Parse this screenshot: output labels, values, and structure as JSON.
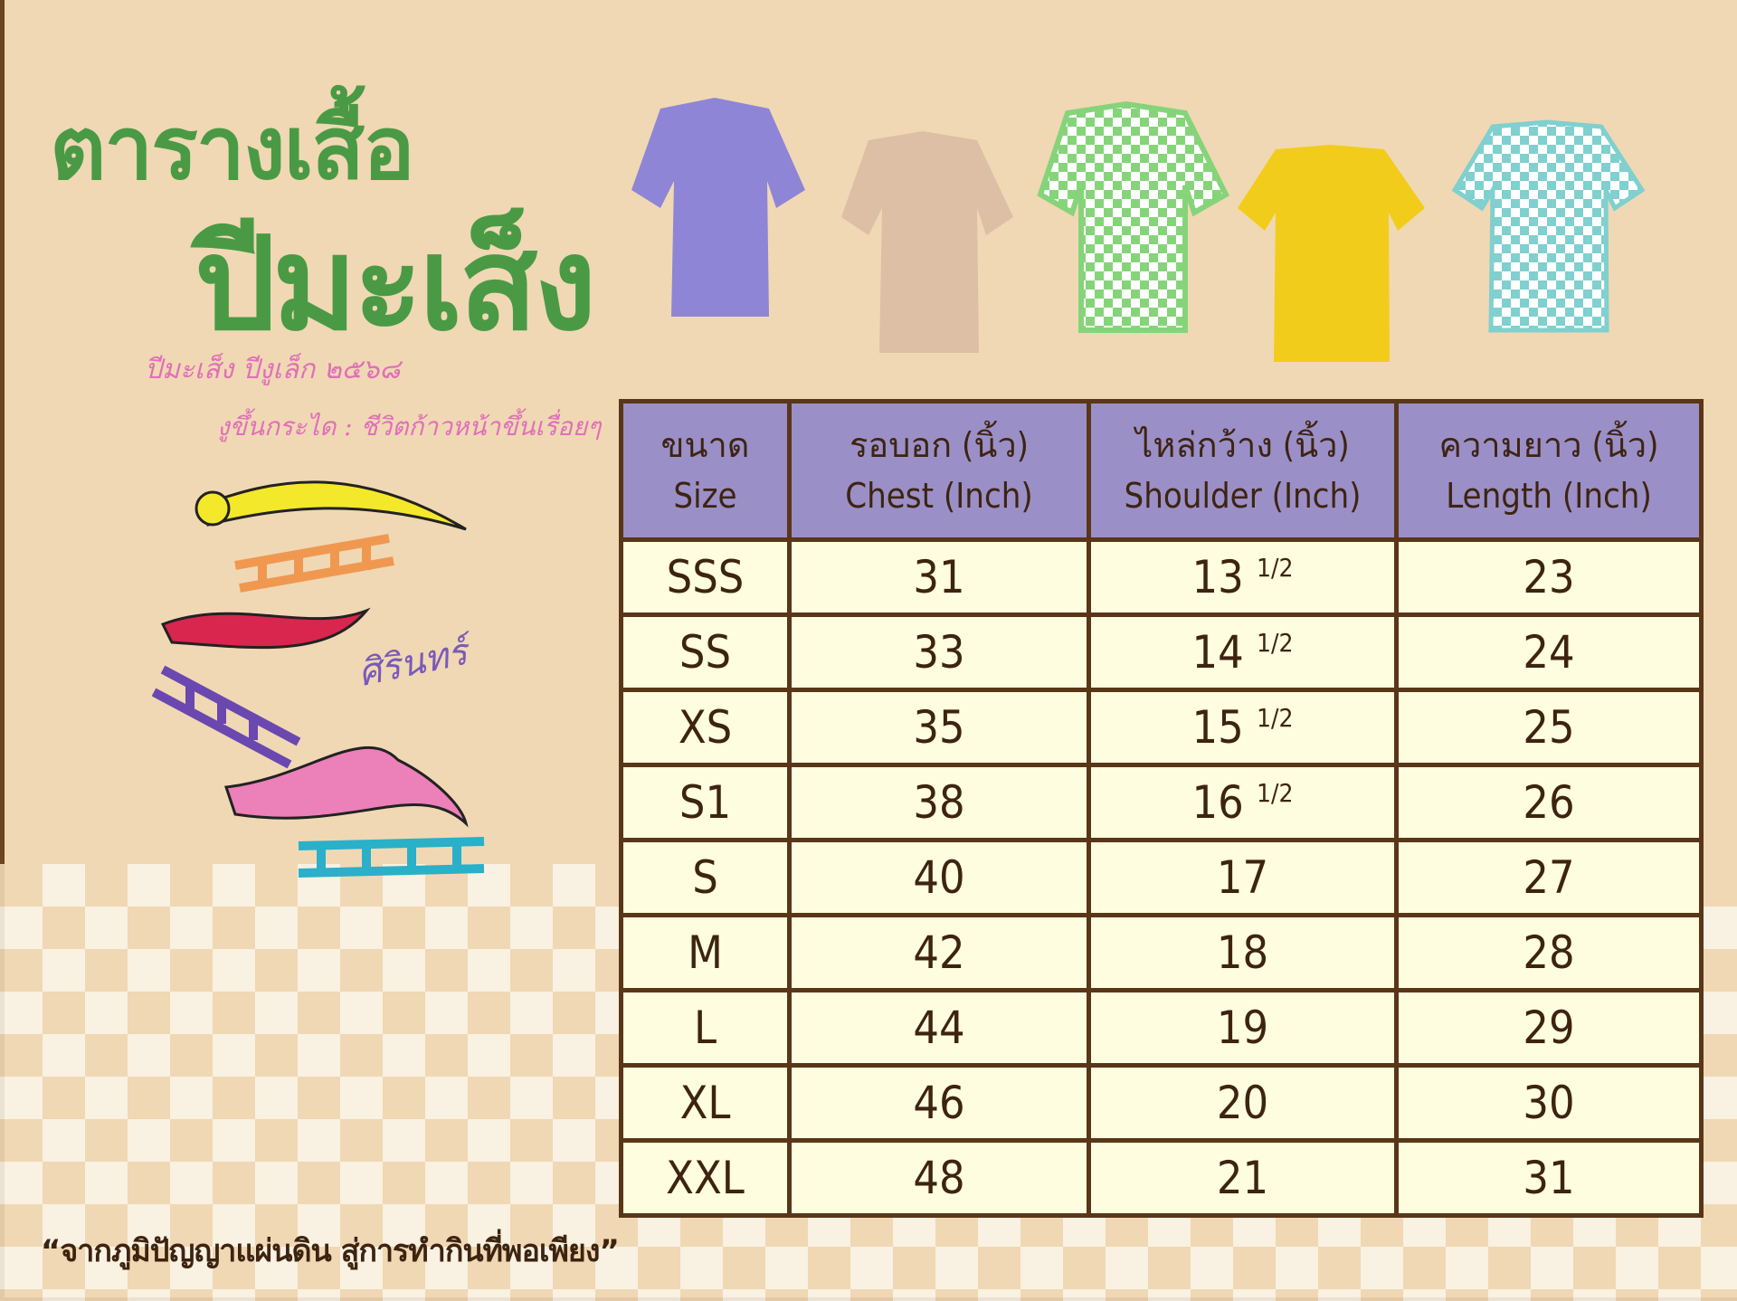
{
  "title": {
    "line1": "ตารางเสื้อ",
    "line2": "ปีมะเส็ง"
  },
  "handwriting": {
    "line1": "ปีมะเส็ง ปีงูเล็ก ๒๕๖๘",
    "line2": "งูขึ้นกระได : ชีวิตก้าวหน้าขึ้นเรื่อยๆ",
    "signature": "ศิรินทร์"
  },
  "shirts": [
    {
      "color": "#8f85d6",
      "style": "polo"
    },
    {
      "color": "#dcbfa4",
      "style": "polo"
    },
    {
      "color": "#86d47a",
      "style": "checkered-polo"
    },
    {
      "color": "#f2cc1a",
      "style": "tshirt"
    },
    {
      "color": "#7fd0cf",
      "style": "checkered-tshirt"
    }
  ],
  "table": {
    "headers": [
      [
        "ขนาด",
        "Size"
      ],
      [
        "รอบอก (นิ้ว)",
        "Chest (Inch)"
      ],
      [
        "ไหล่กว้าง (นิ้ว)",
        "Shoulder (Inch)"
      ],
      [
        "ความยาว (นิ้ว)",
        "Length (Inch)"
      ]
    ],
    "rows": [
      [
        "SSS",
        "31",
        "13",
        "1/2",
        "23"
      ],
      [
        "SS",
        "33",
        "14",
        "1/2",
        "24"
      ],
      [
        "XS",
        "35",
        "15",
        "1/2",
        "25"
      ],
      [
        "S1",
        "38",
        "16",
        "1/2",
        "26"
      ],
      [
        "S",
        "40",
        "17",
        "",
        "27"
      ],
      [
        "M",
        "42",
        "18",
        "",
        "28"
      ],
      [
        "L",
        "44",
        "19",
        "",
        "29"
      ],
      [
        "XL",
        "46",
        "20",
        "",
        "30"
      ],
      [
        "XXL",
        "48",
        "21",
        "",
        "31"
      ]
    ]
  },
  "quote": "“จากภูมิปัญญาแผ่นดิน สู่การทำกินที่พอเพียง”",
  "colors": {
    "title": "#4a9a45",
    "header_bg": "#9b8fc8",
    "cell_bg": "#fffde0",
    "border": "#5a3618",
    "background": "#f0d8b4"
  }
}
